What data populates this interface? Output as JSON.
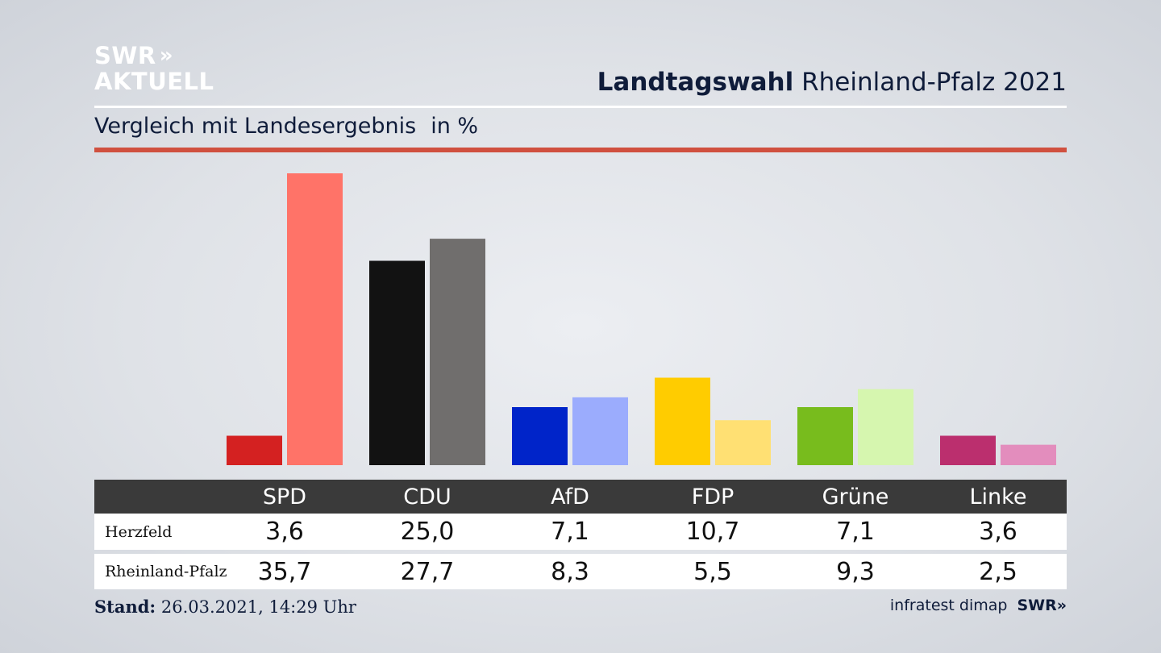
{
  "header": {
    "logo_line1": "SWR",
    "logo_chevrons": "»",
    "logo_line2": "AKTUELL",
    "title_bold": "Landtagswahl",
    "title_rest": "Rheinland-Pfalz 2021",
    "subtitle": "Vergleich mit Landesergebnis",
    "unit": "in %"
  },
  "chart_data": {
    "type": "bar",
    "categories": [
      "SPD",
      "CDU",
      "AfD",
      "FDP",
      "Grüne",
      "Linke"
    ],
    "series": [
      {
        "name": "Herzfeld",
        "values": [
          3.6,
          25.0,
          7.1,
          10.7,
          7.1,
          3.6
        ],
        "display": [
          "3,6",
          "25,0",
          "7,1",
          "10,7",
          "7,1",
          "3,6"
        ],
        "colors": [
          "#d42121",
          "#121212",
          "#0024c9",
          "#ffcc00",
          "#78bc1d",
          "#bb2f6e"
        ]
      },
      {
        "name": "Rheinland-Pfalz",
        "values": [
          35.7,
          27.7,
          8.3,
          5.5,
          9.3,
          2.5
        ],
        "display": [
          "35,7",
          "27,7",
          "8,3",
          "5,5",
          "9,3",
          "2,5"
        ],
        "colors": [
          "#ff7368",
          "#706e6d",
          "#9bacfd",
          "#ffe073",
          "#d6f6af",
          "#e38dbd"
        ]
      }
    ],
    "ylim": [
      0,
      35.7
    ]
  },
  "footer": {
    "stand_label": "Stand:",
    "stand_value": "26.03.2021, 14:29 Uhr",
    "source": "infratest dimap",
    "brand": "SWR»"
  }
}
